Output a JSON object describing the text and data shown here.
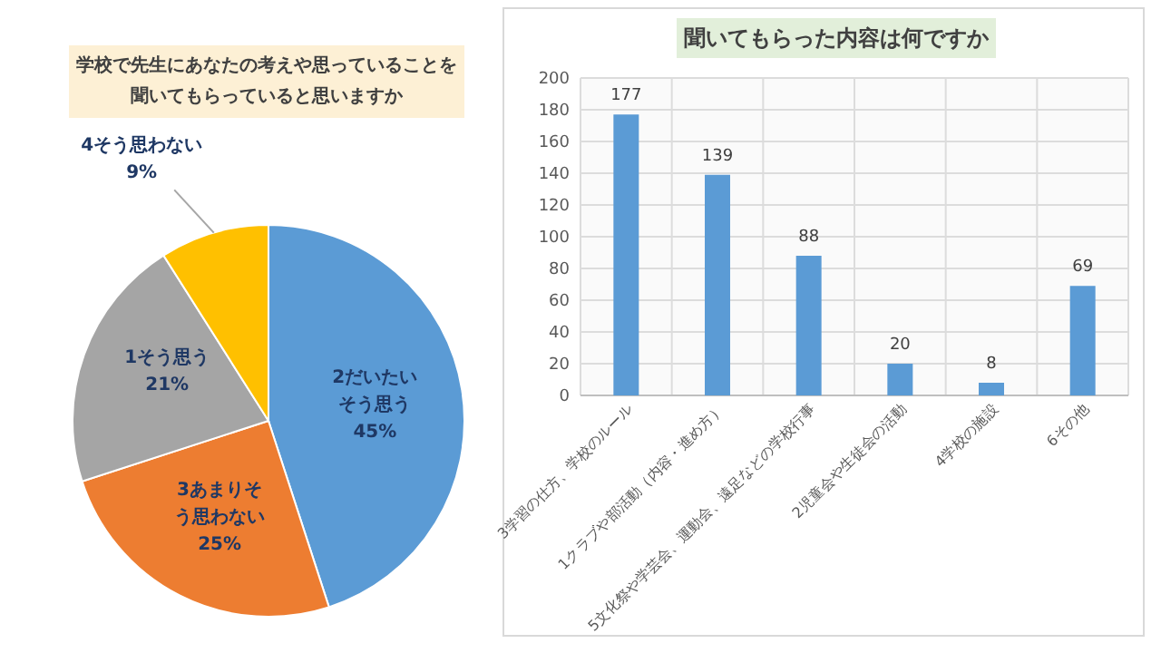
{
  "chart_data": [
    {
      "type": "pie",
      "title": "学校で先生にあなたの考えや思っていることを聞いてもらっていると思いますか",
      "categories": [
        "2だいたいそう思う",
        "3あまりそう思わない",
        "1そう思う",
        "4そう思わない"
      ],
      "values": [
        45,
        25,
        21,
        9
      ],
      "colors": [
        "#5b9bd5",
        "#ed7d31",
        "#a5a5a5",
        "#ffc000"
      ],
      "value_labels": [
        "45%",
        "25%",
        "21%",
        "9%"
      ]
    },
    {
      "type": "bar",
      "title": "聞いてもらった内容は何ですか",
      "categories": [
        "3学習の仕方、学校のルール",
        "1クラブや部活動（内容・進め方）",
        "5文化祭や学芸会、運動会、遠足などの学校行事",
        "2児童会や生徒会の活動",
        "4学校の施設",
        "6その他"
      ],
      "values": [
        177,
        139,
        88,
        20,
        8,
        69
      ],
      "color": "#5b9bd5",
      "ylim": [
        0,
        200
      ],
      "yticks": [
        0,
        20,
        40,
        60,
        80,
        100,
        120,
        140,
        160,
        180,
        200
      ],
      "grid": true,
      "data_labels": true
    }
  ]
}
